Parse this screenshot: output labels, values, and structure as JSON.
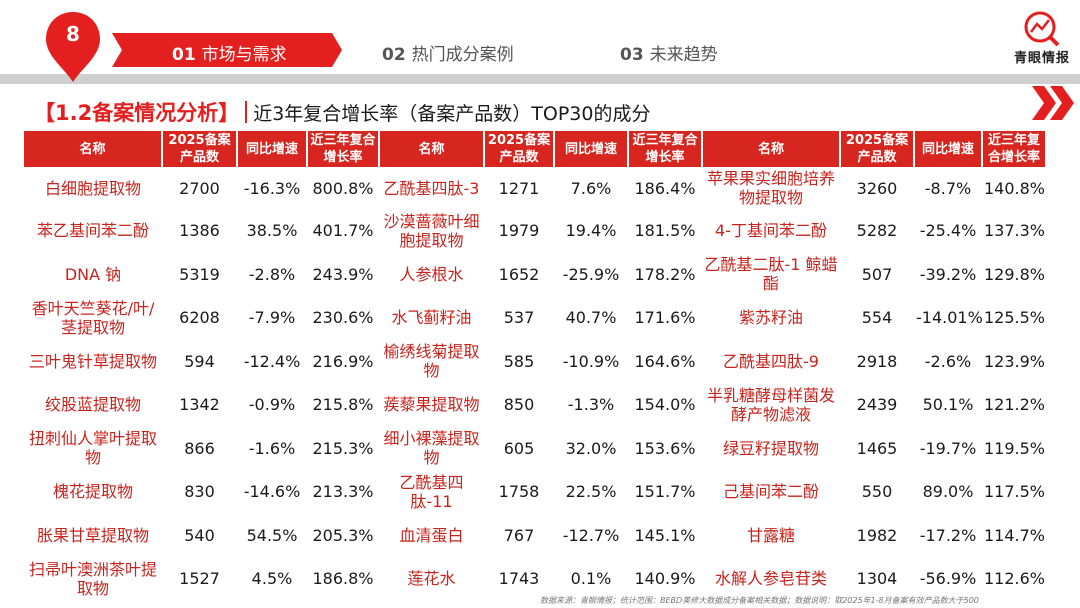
{
  "header": {
    "page_number": "8",
    "tabs": [
      {
        "num": "01",
        "label": "市场与需求",
        "active": true
      },
      {
        "num": "02",
        "label": "热门成分案例",
        "active": false
      },
      {
        "num": "03",
        "label": "未来趋势",
        "active": false
      }
    ],
    "logo_text": "青眼情报"
  },
  "title": {
    "section": "【1.2备案情况分析】",
    "subtitle": "近3年复合增长率（备案产品数）TOP30的成分"
  },
  "table": {
    "group_columns": [
      {
        "name": "名称",
        "count": "2025备案产品数",
        "yoy": "同比增速",
        "cagr": "近三年复合增长率"
      },
      {
        "name": "名称",
        "count": "2025备案产品数",
        "yoy": "同比增速",
        "cagr": "近三年复合增长率"
      },
      {
        "name": "名称",
        "count": "2025备案产品数",
        "yoy": "同比增速",
        "cagr": "近三年复合增长率"
      }
    ],
    "rows": [
      [
        {
          "name": "白细胞提取物",
          "count": "2700",
          "yoy": "-16.3%",
          "cagr": "800.8%"
        },
        {
          "name": "乙酰基四肽-3",
          "count": "1271",
          "yoy": "7.6%",
          "cagr": "186.4%"
        },
        {
          "name": "苹果果实细胞培养物提取物",
          "count": "3260",
          "yoy": "-8.7%",
          "cagr": "140.8%"
        }
      ],
      [
        {
          "name": "苯乙基间苯二酚",
          "count": "1386",
          "yoy": "38.5%",
          "cagr": "401.7%"
        },
        {
          "name": "沙漠蔷薇叶细胞提取物",
          "count": "1979",
          "yoy": "19.4%",
          "cagr": "181.5%"
        },
        {
          "name": "4-丁基间苯二酚",
          "count": "5282",
          "yoy": "-25.4%",
          "cagr": "137.3%"
        }
      ],
      [
        {
          "name": "DNA 钠",
          "count": "5319",
          "yoy": "-2.8%",
          "cagr": "243.9%"
        },
        {
          "name": "人参根水",
          "count": "1652",
          "yoy": "-25.9%",
          "cagr": "178.2%"
        },
        {
          "name": "乙酰基二肽-1 鲸蜡酯",
          "count": "507",
          "yoy": "-39.2%",
          "cagr": "129.8%"
        }
      ],
      [
        {
          "name": "香叶天竺葵花/叶/茎提取物",
          "count": "6208",
          "yoy": "-7.9%",
          "cagr": "230.6%"
        },
        {
          "name": "水飞蓟籽油",
          "count": "537",
          "yoy": "40.7%",
          "cagr": "171.6%"
        },
        {
          "name": "紫苏籽油",
          "count": "554",
          "yoy": "-14.01%",
          "cagr": "125.5%"
        }
      ],
      [
        {
          "name": "三叶鬼针草提取物",
          "count": "594",
          "yoy": "-12.4%",
          "cagr": "216.9%"
        },
        {
          "name": "榆绣线菊提取物",
          "count": "585",
          "yoy": "-10.9%",
          "cagr": "164.6%"
        },
        {
          "name": "乙酰基四肽-9",
          "count": "2918",
          "yoy": "-2.6%",
          "cagr": "123.9%"
        }
      ],
      [
        {
          "name": "绞股蓝提取物",
          "count": "1342",
          "yoy": "-0.9%",
          "cagr": "215.8%"
        },
        {
          "name": "蒺藜果提取物",
          "count": "850",
          "yoy": "-1.3%",
          "cagr": "154.0%"
        },
        {
          "name": "半乳糖酵母样菌发酵产物滤液",
          "count": "2439",
          "yoy": "50.1%",
          "cagr": "121.2%"
        }
      ],
      [
        {
          "name": "扭刺仙人掌叶提取物",
          "count": "866",
          "yoy": "-1.6%",
          "cagr": "215.3%"
        },
        {
          "name": "细小裸藻提取物",
          "count": "605",
          "yoy": "32.0%",
          "cagr": "153.6%"
        },
        {
          "name": "绿豆籽提取物",
          "count": "1465",
          "yoy": "-19.7%",
          "cagr": "119.5%"
        }
      ],
      [
        {
          "name": "槐花提取物",
          "count": "830",
          "yoy": "-14.6%",
          "cagr": "213.3%"
        },
        {
          "name": "乙酰基四肽-11",
          "count": "1758",
          "yoy": "22.5%",
          "cagr": "151.7%"
        },
        {
          "name": "己基间苯二酚",
          "count": "550",
          "yoy": "89.0%",
          "cagr": "117.5%"
        }
      ],
      [
        {
          "name": "胀果甘草提取物",
          "count": "540",
          "yoy": "54.5%",
          "cagr": "205.3%"
        },
        {
          "name": "血清蛋白",
          "count": "767",
          "yoy": "-12.7%",
          "cagr": "145.1%"
        },
        {
          "name": "甘露糖",
          "count": "1982",
          "yoy": "-17.2%",
          "cagr": "114.7%"
        }
      ],
      [
        {
          "name": "扫帚叶澳洲茶叶提取物",
          "count": "1527",
          "yoy": "4.5%",
          "cagr": "186.8%"
        },
        {
          "name": "莲花水",
          "count": "1743",
          "yoy": "0.1%",
          "cagr": "140.9%"
        },
        {
          "name": "水解人参皂苷类",
          "count": "1304",
          "yoy": "-56.9%",
          "cagr": "112.6%"
        }
      ]
    ]
  },
  "footer": {
    "source": "数据来源：青眼情报；统计范围：BEBD美修大数据成分备案相关数据；数据说明：取2025年1-8月备案有效产品数大于500"
  },
  "colors": {
    "accent": "#d6261f",
    "band": "#cfcfcf",
    "text": "#1a1a1a"
  }
}
